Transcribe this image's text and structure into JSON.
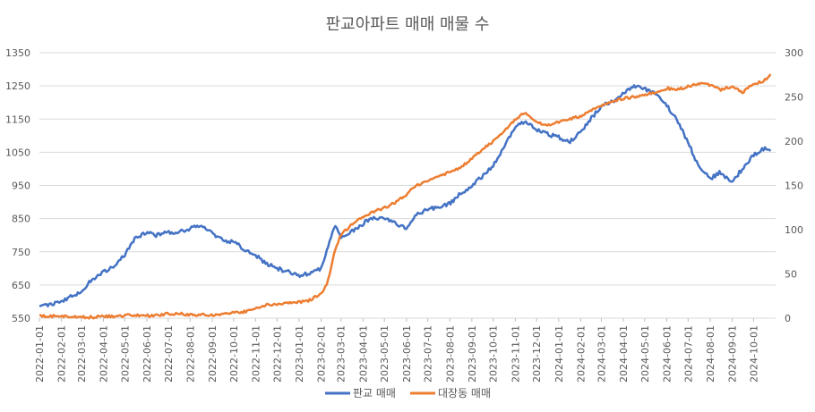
{
  "chart_data": {
    "type": "line",
    "title": "판교아파트 매매 매물 수",
    "dual_axis": true,
    "y_left": {
      "min": 550,
      "max": 1350,
      "ticks": [
        550,
        650,
        750,
        850,
        950,
        1050,
        1150,
        1250,
        1350
      ]
    },
    "y_right": {
      "min": 0,
      "max": 300,
      "ticks": [
        0,
        50,
        100,
        150,
        200,
        250,
        300
      ]
    },
    "x_tick_labels": [
      "2022-01-01",
      "2022-02-01",
      "2022-03-01",
      "2022-04-01",
      "2022-05-01",
      "2022-06-01",
      "2022-07-01",
      "2022-08-01",
      "2022-09-01",
      "2022-10-01",
      "2022-11-01",
      "2022-12-01",
      "2023-01-01",
      "2023-02-01",
      "2023-03-01",
      "2023-04-01",
      "2023-05-01",
      "2023-06-01",
      "2023-07-01",
      "2023-08-01",
      "2023-09-01",
      "2023-10-01",
      "2023-11-01",
      "2023-12-01",
      "2024-01-01",
      "2024-02-01",
      "2024-03-01",
      "2024-04-01",
      "2024-05-01",
      "2024-06-01",
      "2024-07-01",
      "2024-08-01",
      "2024-09-01",
      "2024-10-01"
    ],
    "grid": true,
    "legend_position": "bottom",
    "series": [
      {
        "name": "판교 매매",
        "axis": "left",
        "color": "#4472C4",
        "x": [
          "2022-01-01",
          "2022-01-15",
          "2022-02-01",
          "2022-02-15",
          "2022-03-01",
          "2022-03-15",
          "2022-04-01",
          "2022-04-15",
          "2022-05-01",
          "2022-05-15",
          "2022-06-01",
          "2022-06-15",
          "2022-07-01",
          "2022-07-15",
          "2022-08-01",
          "2022-08-15",
          "2022-09-01",
          "2022-09-15",
          "2022-10-01",
          "2022-10-15",
          "2022-11-01",
          "2022-11-15",
          "2022-12-01",
          "2022-12-15",
          "2023-01-01",
          "2023-01-15",
          "2023-02-01",
          "2023-02-10",
          "2023-02-20",
          "2023-03-01",
          "2023-03-15",
          "2023-04-01",
          "2023-04-15",
          "2023-05-01",
          "2023-05-15",
          "2023-06-01",
          "2023-06-15",
          "2023-07-01",
          "2023-07-15",
          "2023-08-01",
          "2023-08-15",
          "2023-09-01",
          "2023-09-15",
          "2023-10-01",
          "2023-10-15",
          "2023-11-01",
          "2023-11-15",
          "2023-12-01",
          "2023-12-15",
          "2024-01-01",
          "2024-01-15",
          "2024-02-01",
          "2024-02-15",
          "2024-03-01",
          "2024-03-15",
          "2024-04-01",
          "2024-04-15",
          "2024-05-01",
          "2024-05-15",
          "2024-06-01",
          "2024-06-15",
          "2024-07-01",
          "2024-07-15",
          "2024-08-01",
          "2024-08-15",
          "2024-09-01",
          "2024-09-15",
          "2024-10-01",
          "2024-10-15",
          "2024-10-25"
        ],
        "values": [
          590,
          592,
          600,
          615,
          630,
          665,
          690,
          705,
          740,
          790,
          810,
          800,
          810,
          810,
          820,
          830,
          805,
          785,
          780,
          760,
          740,
          715,
          700,
          690,
          680,
          685,
          700,
          760,
          830,
          795,
          810,
          835,
          855,
          850,
          840,
          820,
          860,
          880,
          880,
          895,
          925,
          950,
          975,
          1010,
          1060,
          1130,
          1140,
          1120,
          1105,
          1095,
          1080,
          1110,
          1150,
          1190,
          1200,
          1230,
          1250,
          1240,
          1225,
          1190,
          1150,
          1080,
          1010,
          970,
          990,
          960,
          1000,
          1040,
          1060,
          1055
        ]
      },
      {
        "name": "대장동 매매",
        "axis": "right",
        "color": "#ED7D31",
        "x": [
          "2022-01-01",
          "2022-01-15",
          "2022-02-01",
          "2022-02-15",
          "2022-03-01",
          "2022-03-15",
          "2022-04-01",
          "2022-04-15",
          "2022-05-01",
          "2022-05-15",
          "2022-06-01",
          "2022-06-15",
          "2022-07-01",
          "2022-07-15",
          "2022-08-01",
          "2022-08-15",
          "2022-09-01",
          "2022-09-15",
          "2022-10-01",
          "2022-10-15",
          "2022-11-01",
          "2022-11-15",
          "2022-12-01",
          "2022-12-15",
          "2023-01-01",
          "2023-01-15",
          "2023-02-01",
          "2023-02-10",
          "2023-02-20",
          "2023-03-01",
          "2023-03-15",
          "2023-04-01",
          "2023-04-15",
          "2023-05-01",
          "2023-05-15",
          "2023-06-01",
          "2023-06-15",
          "2023-07-01",
          "2023-07-15",
          "2023-08-01",
          "2023-08-15",
          "2023-09-01",
          "2023-09-15",
          "2023-10-01",
          "2023-10-15",
          "2023-11-01",
          "2023-11-15",
          "2023-12-01",
          "2023-12-15",
          "2024-01-01",
          "2024-01-15",
          "2024-02-01",
          "2024-02-15",
          "2024-03-01",
          "2024-03-15",
          "2024-04-01",
          "2024-04-15",
          "2024-05-01",
          "2024-05-15",
          "2024-06-01",
          "2024-06-15",
          "2024-07-01",
          "2024-07-15",
          "2024-08-01",
          "2024-08-15",
          "2024-09-01",
          "2024-09-15",
          "2024-10-01",
          "2024-10-15",
          "2024-10-25"
        ],
        "values": [
          2,
          2,
          2,
          1,
          1,
          1,
          2,
          2,
          3,
          3,
          3,
          3,
          5,
          5,
          4,
          4,
          4,
          4,
          6,
          7,
          12,
          15,
          16,
          17,
          18,
          20,
          27,
          40,
          75,
          95,
          105,
          115,
          120,
          125,
          130,
          140,
          150,
          155,
          160,
          165,
          170,
          180,
          190,
          200,
          210,
          225,
          232,
          222,
          218,
          222,
          225,
          228,
          235,
          240,
          245,
          248,
          250,
          253,
          255,
          260,
          258,
          262,
          265,
          263,
          258,
          262,
          255,
          265,
          268,
          275
        ]
      }
    ]
  }
}
